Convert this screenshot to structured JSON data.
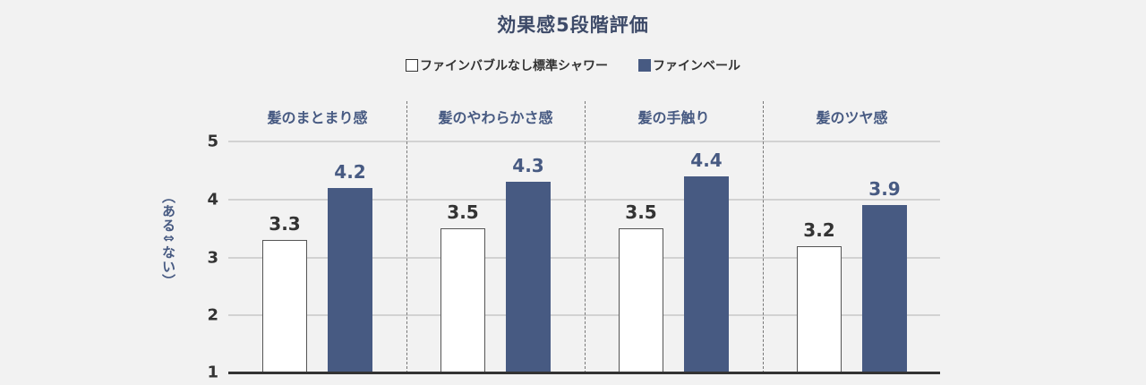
{
  "chart_data": {
    "type": "bar",
    "title": "効果感5段階評価",
    "categories": [
      "髪のまとまり感",
      "髪のやわらかさ感",
      "髪の手触り",
      "髪のツヤ感"
    ],
    "series": [
      {
        "name": "ファインバブルなし標準シャワー",
        "values": [
          3.3,
          3.5,
          3.5,
          3.2
        ],
        "color": "#ffffff"
      },
      {
        "name": "ファインベール",
        "values": [
          4.2,
          4.3,
          4.4,
          3.9
        ],
        "color": "#475a82"
      }
    ],
    "xlabel": "",
    "ylabel": "（ある⇕ない）",
    "ylim": [
      1,
      5
    ],
    "yticks": [
      "5",
      "4",
      "3",
      "2",
      "1"
    ],
    "grid": true,
    "legend_position": "top",
    "value_labels": {
      "series0": [
        "3.3",
        "3.5",
        "3.5",
        "3.2"
      ],
      "series1": [
        "4.2",
        "4.3",
        "4.4",
        "3.9"
      ]
    }
  },
  "legend": {
    "item0": "ファインバブルなし標準シャワー",
    "item1": "ファインベール"
  }
}
